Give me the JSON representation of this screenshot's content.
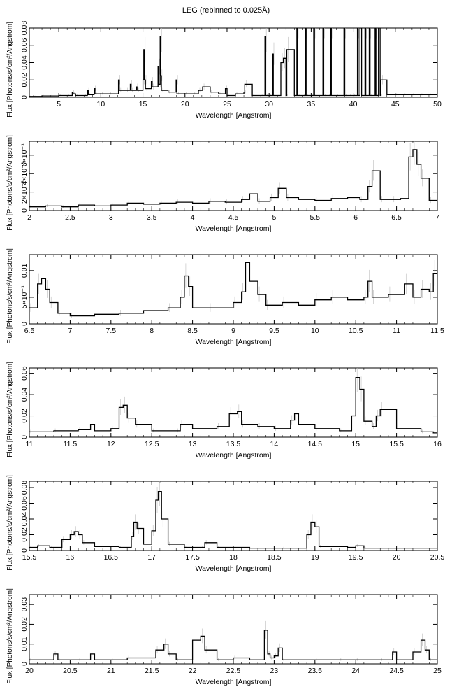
{
  "title": "LEG (rebinned to 0.025Å)",
  "chart_data": [
    {
      "type": "line",
      "step": true,
      "xlabel": "Wavelength [Angstrom]",
      "ylabel": "Flux [Photons/s/cm²/Angstrom]",
      "xlim": [
        1.5,
        50
      ],
      "ylim": [
        0,
        0.08
      ],
      "xticks": [
        5,
        10,
        15,
        20,
        25,
        30,
        35,
        40,
        45,
        50
      ],
      "yticks": [
        0,
        0.02,
        0.04,
        0.06,
        0.08
      ],
      "ytick_labels": [
        "0",
        "0.02",
        "0.04",
        "0.06",
        "0.08"
      ],
      "series": [
        {
          "x": [
            1.5,
            2,
            3,
            4,
            5,
            6,
            6.6,
            6.7,
            7,
            8,
            8.4,
            8.5,
            9,
            9.2,
            9.3,
            10,
            11,
            12.1,
            12.2,
            13,
            13.5,
            13.6,
            14,
            14.2,
            14.3,
            15,
            15.1,
            15.2,
            15.3,
            16,
            16.1,
            16.8,
            16.9,
            17.05,
            17.1,
            17.2,
            18,
            18.95,
            19.05,
            20,
            21,
            21.6,
            22.1,
            23,
            24,
            24.8,
            25,
            26,
            27,
            27.1,
            28,
            29,
            29.5,
            29.6,
            30,
            30.4,
            30.5,
            31,
            31.4,
            31.7,
            32,
            32.1,
            33,
            33.3,
            33.4,
            34,
            34.3,
            34.4,
            35,
            35.3,
            35.4,
            36,
            36.4,
            36.5,
            37,
            37.3,
            37.4,
            38,
            38.9,
            39,
            39.5,
            40,
            40.5,
            40.6,
            40.8,
            41,
            41.4,
            41.5,
            41.9,
            42,
            42.6,
            42.7,
            43,
            43.2,
            43.3,
            44,
            45,
            46,
            47,
            48,
            49,
            50
          ],
          "y": [
            0.001,
            0.001,
            0.0015,
            0.0015,
            0.002,
            0.002,
            0.006,
            0.004,
            0.002,
            0.002,
            0.008,
            0.003,
            0.003,
            0.01,
            0.004,
            0.004,
            0.004,
            0.02,
            0.008,
            0.008,
            0.015,
            0.008,
            0.008,
            0.012,
            0.008,
            0.02,
            0.055,
            0.02,
            0.01,
            0.018,
            0.012,
            0.035,
            0.015,
            0.07,
            0.025,
            0.008,
            0.006,
            0.02,
            0.004,
            0.004,
            0.004,
            0.008,
            0.012,
            0.006,
            0.004,
            0.01,
            0.002,
            0.004,
            0.006,
            0.015,
            0.002,
            0.002,
            0.07,
            0.002,
            0.002,
            0.05,
            0.002,
            0.002,
            0.04,
            0.045,
            0.002,
            0.055,
            0.002,
            0.09,
            0.002,
            0.002,
            0.09,
            0.002,
            0.002,
            0.09,
            0.002,
            0.002,
            0.09,
            0.002,
            0.002,
            0.09,
            0.002,
            0.002,
            0.09,
            0.002,
            0.002,
            0.002,
            0.09,
            0.002,
            0.09,
            0.002,
            0.09,
            0.002,
            0.09,
            0.002,
            0.09,
            0.002,
            0.09,
            0.002,
            0.02,
            0.003,
            0.003,
            0.003,
            0.003,
            0.003,
            0.003,
            0.003
          ]
        }
      ]
    },
    {
      "type": "line",
      "step": true,
      "xlabel": "Wavelength [Angstrom]",
      "ylabel": "Flux [Photons/s/cm²/Angstrom]",
      "xlim": [
        2,
        7
      ],
      "ylim": [
        0,
        0.0075
      ],
      "xticks": [
        2,
        2.5,
        3,
        3.5,
        4,
        4.5,
        5,
        5.5,
        6,
        6.5,
        7
      ],
      "yticks": [
        0,
        0.002,
        0.004,
        0.006,
        0.008
      ],
      "ytick_labels": [
        "0",
        "2×10⁻³",
        "4×10⁻³",
        "6×10⁻³",
        "8×10⁻³"
      ],
      "series": [
        {
          "x": [
            2,
            2.2,
            2.4,
            2.6,
            2.8,
            3,
            3.2,
            3.4,
            3.6,
            3.8,
            4,
            4.2,
            4.4,
            4.6,
            4.7,
            4.8,
            4.95,
            5.05,
            5.15,
            5.3,
            5.5,
            5.7,
            5.9,
            6.05,
            6.15,
            6.2,
            6.3,
            6.45,
            6.55,
            6.65,
            6.7,
            6.75,
            6.8,
            6.9,
            7
          ],
          "y": [
            0.0004,
            0.0005,
            0.0004,
            0.0006,
            0.0005,
            0.0006,
            0.0008,
            0.0007,
            0.0008,
            0.0009,
            0.0008,
            0.001,
            0.0009,
            0.0012,
            0.0018,
            0.001,
            0.0014,
            0.0024,
            0.0014,
            0.0012,
            0.0011,
            0.0013,
            0.0014,
            0.0012,
            0.0026,
            0.0043,
            0.0012,
            0.0012,
            0.0013,
            0.0058,
            0.0066,
            0.005,
            0.0035,
            0.0011,
            0.0012
          ]
        }
      ]
    },
    {
      "type": "line",
      "step": true,
      "xlabel": "Wavelength [Angstrom]",
      "ylabel": "Flux [Photons/s/cm²/Angstrom]",
      "xlim": [
        6.5,
        11.5
      ],
      "ylim": [
        0,
        0.013
      ],
      "xticks": [
        6.5,
        7,
        7.5,
        8,
        8.5,
        9,
        9.5,
        10,
        10.5,
        11,
        11.5
      ],
      "yticks": [
        0,
        0.005,
        0.01
      ],
      "ytick_labels": [
        "0",
        "5×10⁻³",
        "0.01"
      ],
      "series": [
        {
          "x": [
            6.5,
            6.6,
            6.65,
            6.7,
            6.75,
            6.85,
            7,
            7.3,
            7.6,
            7.9,
            8.2,
            8.35,
            8.4,
            8.45,
            8.5,
            8.7,
            9,
            9.1,
            9.15,
            9.2,
            9.3,
            9.4,
            9.6,
            9.8,
            10,
            10.2,
            10.4,
            10.6,
            10.65,
            10.7,
            10.9,
            11.1,
            11.2,
            11.3,
            11.4,
            11.45,
            11.5
          ],
          "y": [
            0.003,
            0.0075,
            0.0085,
            0.0065,
            0.004,
            0.002,
            0.0015,
            0.0018,
            0.002,
            0.0025,
            0.003,
            0.005,
            0.009,
            0.007,
            0.003,
            0.003,
            0.004,
            0.006,
            0.0115,
            0.008,
            0.0055,
            0.0035,
            0.004,
            0.0035,
            0.0045,
            0.005,
            0.0045,
            0.005,
            0.008,
            0.005,
            0.0055,
            0.0075,
            0.005,
            0.0065,
            0.006,
            0.0095,
            0.008
          ]
        }
      ]
    },
    {
      "type": "line",
      "step": true,
      "xlabel": "Wavelength [Angstrom]",
      "ylabel": "Flux [Photons/s/cm²/Angstrom]",
      "xlim": [
        11,
        16
      ],
      "ylim": [
        0,
        0.065
      ],
      "xticks": [
        11,
        11.5,
        12,
        12.5,
        13,
        13.5,
        14,
        14.5,
        15,
        15.5,
        16
      ],
      "yticks": [
        0,
        0.02,
        0.04,
        0.06
      ],
      "ytick_labels": [
        "0",
        "0.02",
        "0.04",
        "0.06"
      ],
      "series": [
        {
          "x": [
            11,
            11.3,
            11.6,
            11.75,
            11.8,
            12,
            12.1,
            12.15,
            12.2,
            12.3,
            12.5,
            12.8,
            12.85,
            13,
            13.3,
            13.45,
            13.55,
            13.6,
            13.8,
            14,
            14.2,
            14.25,
            14.3,
            14.5,
            14.8,
            14.95,
            15.0,
            15.05,
            15.1,
            15.2,
            15.25,
            15.3,
            15.5,
            15.8,
            15.95,
            16
          ],
          "y": [
            0.005,
            0.006,
            0.007,
            0.012,
            0.006,
            0.008,
            0.028,
            0.03,
            0.018,
            0.012,
            0.006,
            0.006,
            0.012,
            0.008,
            0.01,
            0.022,
            0.024,
            0.012,
            0.01,
            0.008,
            0.016,
            0.022,
            0.012,
            0.008,
            0.006,
            0.02,
            0.056,
            0.045,
            0.015,
            0.01,
            0.02,
            0.026,
            0.008,
            0.005,
            0.004,
            0.018
          ]
        }
      ]
    },
    {
      "type": "line",
      "step": true,
      "xlabel": "Wavelength [Angstrom]",
      "ylabel": "Flux [Photons/s/cm²/Angstrom]",
      "xlim": [
        15.5,
        20.5
      ],
      "ylim": [
        0,
        0.088
      ],
      "xticks": [
        15.5,
        16,
        16.5,
        17,
        17.5,
        18,
        18.5,
        19,
        19.5,
        20,
        20.5
      ],
      "yticks": [
        0,
        0.02,
        0.04,
        0.06,
        0.08
      ],
      "ytick_labels": [
        "0",
        "0.02",
        "0.04",
        "0.06",
        "0.08"
      ],
      "series": [
        {
          "x": [
            15.5,
            15.6,
            15.75,
            15.9,
            16,
            16.05,
            16.1,
            16.15,
            16.3,
            16.6,
            16.75,
            16.78,
            16.82,
            16.9,
            17.0,
            17.05,
            17.08,
            17.12,
            17.2,
            17.4,
            17.6,
            17.65,
            17.8,
            18.2,
            18.6,
            18.9,
            18.95,
            19.0,
            19.05,
            19.4,
            19.5,
            19.6,
            20,
            20.5
          ],
          "y": [
            0.004,
            0.006,
            0.004,
            0.014,
            0.02,
            0.024,
            0.02,
            0.01,
            0.005,
            0.004,
            0.018,
            0.036,
            0.028,
            0.008,
            0.025,
            0.064,
            0.075,
            0.04,
            0.008,
            0.004,
            0.004,
            0.01,
            0.004,
            0.003,
            0.003,
            0.02,
            0.036,
            0.03,
            0.005,
            0.004,
            0.006,
            0.003,
            0.003,
            0.003
          ]
        }
      ]
    },
    {
      "type": "line",
      "step": true,
      "xlabel": "Wavelength [Angstrom]",
      "ylabel": "Flux [Photons/s/cm²/Angstrom]",
      "xlim": [
        20,
        25
      ],
      "ylim": [
        0,
        0.035
      ],
      "xticks": [
        20,
        20.5,
        21,
        21.5,
        22,
        22.5,
        23,
        23.5,
        24,
        24.5,
        25
      ],
      "yticks": [
        0,
        0.01,
        0.02,
        0.03
      ],
      "ytick_labels": [
        "0",
        "0.01",
        "0.02",
        "0.03"
      ],
      "series": [
        {
          "x": [
            20,
            20.3,
            20.35,
            20.6,
            20.75,
            20.8,
            21,
            21.2,
            21.4,
            21.55,
            21.65,
            21.7,
            21.8,
            22.0,
            22.1,
            22.15,
            22.3,
            22.5,
            22.7,
            22.88,
            22.92,
            22.95,
            23.0,
            23.05,
            23.1,
            23.3,
            23.5,
            23.8,
            24.0,
            24.3,
            24.45,
            24.5,
            24.7,
            24.8,
            24.85,
            24.9,
            25
          ],
          "y": [
            0.002,
            0.005,
            0.002,
            0.002,
            0.005,
            0.002,
            0.002,
            0.003,
            0.003,
            0.007,
            0.01,
            0.005,
            0.002,
            0.012,
            0.014,
            0.007,
            0.002,
            0.003,
            0.002,
            0.017,
            0.005,
            0.003,
            0.004,
            0.008,
            0.002,
            0.002,
            0.002,
            0.002,
            0.002,
            0.002,
            0.006,
            0.002,
            0.006,
            0.012,
            0.007,
            0.002,
            0.003
          ]
        }
      ]
    }
  ]
}
